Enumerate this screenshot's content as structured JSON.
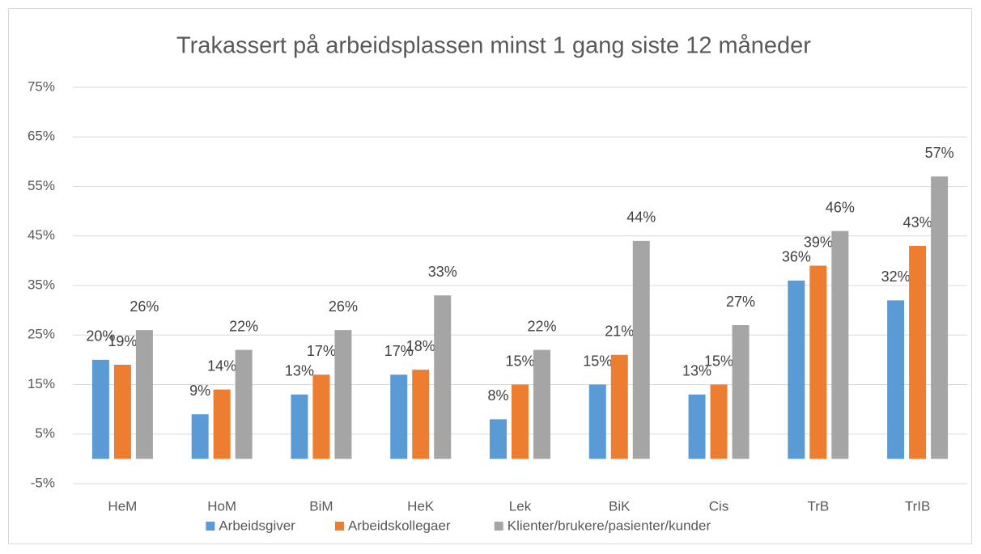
{
  "chart_data": {
    "type": "bar",
    "title": "Trakassert på arbeidsplassen minst 1 gang siste 12 måneder",
    "categories": [
      "HeM",
      "HoM",
      "BiM",
      "HeK",
      "Lek",
      "BiK",
      "Cis",
      "TrB",
      "TrIB"
    ],
    "series": [
      {
        "name": "Arbeidsgiver",
        "color": "#5b9bd5",
        "values": [
          20,
          9,
          13,
          17,
          8,
          15,
          13,
          36,
          32
        ],
        "value_labels": [
          "20%",
          "9%",
          "13%",
          "17%",
          "8%",
          "15%",
          "13%",
          "36%",
          "32%"
        ]
      },
      {
        "name": "Arbeidskollegaer",
        "color": "#ed7d31",
        "values": [
          19,
          14,
          17,
          18,
          15,
          21,
          15,
          39,
          43
        ],
        "value_labels": [
          "19%",
          "14%",
          "17%",
          "18%",
          "15%",
          "21%",
          "15%",
          "39%",
          "43%"
        ]
      },
      {
        "name": "Klienter/brukere/pasienter/kunder",
        "color": "#a5a5a5",
        "values": [
          26,
          22,
          26,
          33,
          22,
          44,
          27,
          46,
          57
        ],
        "value_labels": [
          "26%",
          "22%",
          "26%",
          "33%",
          "22%",
          "44%",
          "27%",
          "46%",
          "57%"
        ]
      }
    ],
    "ylim": [
      -5,
      75
    ],
    "yticks": [
      {
        "value": -5,
        "label": "-5%"
      },
      {
        "value": 5,
        "label": "5%"
      },
      {
        "value": 15,
        "label": "15%"
      },
      {
        "value": 25,
        "label": "25%"
      },
      {
        "value": 35,
        "label": "35%"
      },
      {
        "value": 45,
        "label": "45%"
      },
      {
        "value": 55,
        "label": "55%"
      },
      {
        "value": 65,
        "label": "65%"
      },
      {
        "value": 75,
        "label": "75%"
      }
    ],
    "grid": true,
    "legend": "bottom"
  }
}
